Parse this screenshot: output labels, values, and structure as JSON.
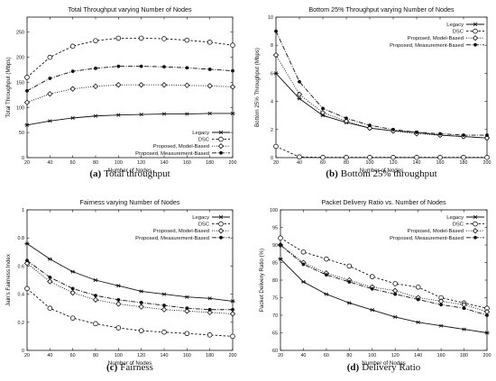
{
  "chart_data": [
    {
      "type": "line",
      "title": "Total Throughput varying Number of Nodes",
      "xlabel": "Number of Nodes",
      "ylabel": "Total Throughput (Mbps)",
      "caption_tag": "(a)",
      "caption_text": "Total throughput",
      "x": [
        20,
        40,
        60,
        80,
        100,
        120,
        140,
        160,
        180,
        200
      ],
      "xlim": [
        20,
        200
      ],
      "ylim": [
        0,
        280
      ],
      "yticks": [
        0,
        50,
        100,
        150,
        200,
        250
      ],
      "legend": "bottom-right",
      "series": [
        {
          "name": "Legacy",
          "values": [
            65,
            73,
            79,
            83,
            85,
            86,
            87,
            87,
            88,
            88
          ]
        },
        {
          "name": "DSC",
          "values": [
            160,
            200,
            222,
            233,
            238,
            238,
            237,
            234,
            230,
            224
          ]
        },
        {
          "name": "Proposed, Model-Based",
          "values": [
            110,
            127,
            137,
            142,
            145,
            145,
            145,
            144,
            143,
            141
          ]
        },
        {
          "name": "Proposed, Measurement-Based",
          "values": [
            133,
            158,
            172,
            178,
            182,
            182,
            181,
            179,
            176,
            173
          ]
        }
      ]
    },
    {
      "type": "line",
      "title": "Bottom 25% Throughput varying Number of Nodes",
      "xlabel": "Number of Nodes",
      "ylabel": "Bottom 25% Throughput (Mbps)",
      "caption_tag": "(b)",
      "caption_text": "Bottom 25% throughput",
      "x": [
        20,
        40,
        60,
        80,
        100,
        120,
        140,
        160,
        180,
        200
      ],
      "xlim": [
        20,
        200
      ],
      "ylim": [
        0,
        10
      ],
      "yticks": [
        0,
        2,
        4,
        6,
        8,
        10
      ],
      "legend": "top-right",
      "series": [
        {
          "name": "Legacy",
          "values": [
            6.0,
            4.2,
            3.0,
            2.5,
            2.1,
            1.9,
            1.8,
            1.6,
            1.5,
            1.4
          ]
        },
        {
          "name": "DSC",
          "values": [
            0.8,
            0.05,
            0.02,
            0.02,
            0.02,
            0.02,
            0.02,
            0.02,
            0.02,
            0.02
          ]
        },
        {
          "name": "Proposed, Model-Based",
          "values": [
            7.3,
            4.5,
            3.2,
            2.6,
            2.1,
            1.9,
            1.7,
            1.6,
            1.5,
            1.4
          ]
        },
        {
          "name": "Proposed, Measurement-Based",
          "values": [
            9.0,
            5.4,
            3.5,
            2.8,
            2.3,
            2.0,
            1.8,
            1.7,
            1.6,
            1.6
          ]
        }
      ]
    },
    {
      "type": "line",
      "title": "Fairness varying Number of Nodes",
      "xlabel": "Number of Nodes",
      "ylabel": "Jain's Fairness Index",
      "caption_tag": "(c)",
      "caption_text": "Fairness",
      "x": [
        20,
        40,
        60,
        80,
        100,
        120,
        140,
        160,
        180,
        200
      ],
      "xlim": [
        20,
        200
      ],
      "ylim": [
        0,
        1
      ],
      "yticks": [
        0,
        0.2,
        0.4,
        0.6,
        0.8,
        1
      ],
      "legend": "top-right",
      "series": [
        {
          "name": "Legacy",
          "values": [
            0.76,
            0.65,
            0.56,
            0.5,
            0.46,
            0.42,
            0.4,
            0.38,
            0.37,
            0.35
          ]
        },
        {
          "name": "DSC",
          "values": [
            0.44,
            0.3,
            0.23,
            0.19,
            0.16,
            0.14,
            0.13,
            0.12,
            0.11,
            0.1
          ]
        },
        {
          "name": "Proposed, Model-Based",
          "values": [
            0.62,
            0.49,
            0.41,
            0.36,
            0.33,
            0.31,
            0.29,
            0.28,
            0.27,
            0.26
          ]
        },
        {
          "name": "Proposed, Measurement-Based",
          "values": [
            0.64,
            0.52,
            0.44,
            0.39,
            0.36,
            0.34,
            0.32,
            0.3,
            0.29,
            0.29
          ]
        }
      ]
    },
    {
      "type": "line",
      "title": "Packet Delivery Ratio vs. Number of Nodes",
      "xlabel": "Number of Nodes",
      "ylabel": "Packet Delivery Ratio (%)",
      "caption_tag": "(d)",
      "caption_text": "Delivery Ratio",
      "x": [
        20,
        40,
        60,
        80,
        100,
        120,
        140,
        160,
        180,
        200
      ],
      "xlim": [
        20,
        200
      ],
      "ylim": [
        60,
        100
      ],
      "yticks": [
        60,
        65,
        70,
        75,
        80,
        85,
        90,
        95,
        100
      ],
      "legend": "top-right",
      "series": [
        {
          "name": "Legacy",
          "values": [
            86,
            79.5,
            76,
            73.5,
            71.5,
            69.5,
            68,
            67,
            66,
            65
          ]
        },
        {
          "name": "DSC",
          "values": [
            92,
            88,
            86,
            84,
            81,
            79,
            78,
            75,
            73.5,
            72
          ]
        },
        {
          "name": "Proposed, Model-Based",
          "values": [
            90,
            85,
            82,
            80,
            78,
            77,
            75,
            74,
            73,
            71
          ]
        },
        {
          "name": "Proposed, Measurement-Based",
          "values": [
            90,
            84.5,
            81.5,
            79.5,
            77.5,
            76,
            74.5,
            73,
            72,
            70
          ]
        }
      ]
    }
  ]
}
